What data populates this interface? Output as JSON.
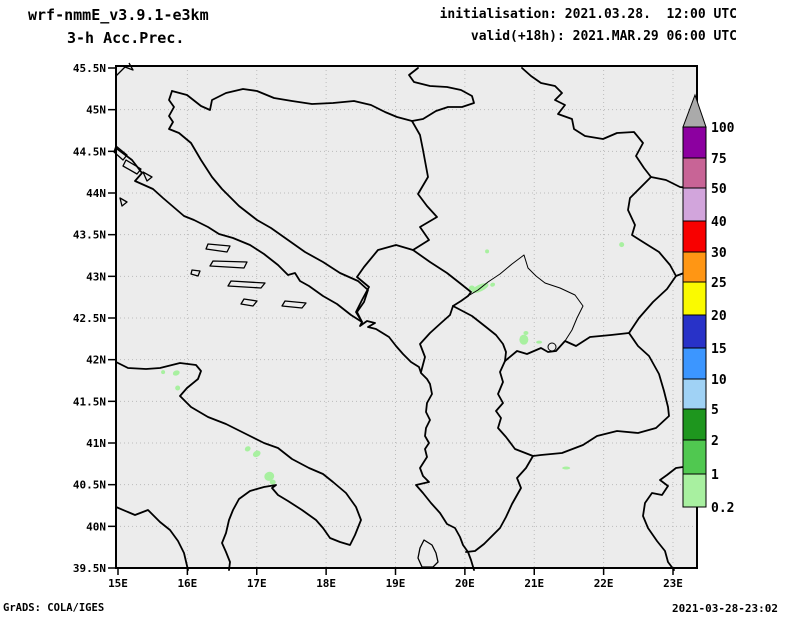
{
  "header": {
    "model_line": "wrf-nmmE_v3.9.1-e3km",
    "variable_line": "3-h Acc.Prec.",
    "init_line": "initialisation: 2021.03.28.  12:00 UTC",
    "valid_line": "valid(+18h): 2021.MAR.29 06:00 UTC"
  },
  "footer": {
    "generator": "GrADS: COLA/IGES",
    "created": "2021-03-28-23:02"
  },
  "axes": {
    "lat_labels": [
      "45.5N",
      "45N",
      "44.5N",
      "44N",
      "43.5N",
      "43N",
      "42.5N",
      "42N",
      "41.5N",
      "41N",
      "40.5N",
      "40N",
      "39.5N"
    ],
    "lon_labels": [
      "15E",
      "16E",
      "17E",
      "18E",
      "19E",
      "20E",
      "21E",
      "22E",
      "23E"
    ]
  },
  "colorbar": {
    "labels": [
      "0.2",
      "1",
      "2",
      "5",
      "10",
      "15",
      "20",
      "25",
      "30",
      "40",
      "50",
      "75",
      "100"
    ],
    "segments": [
      {
        "range": "0.2-1",
        "color": "#a8f0a0"
      },
      {
        "range": "1-2",
        "color": "#50c850"
      },
      {
        "range": "2-5",
        "color": "#1e961e"
      },
      {
        "range": "5-10",
        "color": "#a0d2f5"
      },
      {
        "range": "10-15",
        "color": "#3c96ff"
      },
      {
        "range": "15-20",
        "color": "#2832c8"
      },
      {
        "range": "20-25",
        "color": "#fafa00"
      },
      {
        "range": "25-30",
        "color": "#ff9614"
      },
      {
        "range": "30-40",
        "color": "#f80000"
      },
      {
        "range": "40-50",
        "color": "#d2a5dc"
      },
      {
        "range": "50-75",
        "color": "#c86496"
      },
      {
        "range": "75-100",
        "color": "#8c00a0"
      }
    ],
    "overflow_color": "#aaaaaa"
  },
  "map": {
    "land_color": "#ececec",
    "grid_color": "#bbbbbb",
    "outline_color": "#000000",
    "precip_color": "#a8f0a0",
    "precip_spots": [
      {
        "lon": 15.65,
        "lat": 41.85,
        "w": 4,
        "h": 4,
        "rot": 0
      },
      {
        "lon": 15.84,
        "lat": 41.84,
        "w": 7,
        "h": 5,
        "rot": -20
      },
      {
        "lon": 15.86,
        "lat": 41.66,
        "w": 5,
        "h": 5,
        "rot": 0
      },
      {
        "lon": 16.87,
        "lat": 40.93,
        "w": 6,
        "h": 5,
        "rot": -30
      },
      {
        "lon": 17.0,
        "lat": 40.87,
        "w": 8,
        "h": 6,
        "rot": -30
      },
      {
        "lon": 17.18,
        "lat": 40.6,
        "w": 10,
        "h": 9,
        "rot": -20
      },
      {
        "lon": 17.23,
        "lat": 40.53,
        "w": 6,
        "h": 5,
        "rot": 0
      },
      {
        "lon": 20.32,
        "lat": 43.3,
        "w": 4,
        "h": 4,
        "rot": 0
      },
      {
        "lon": 20.22,
        "lat": 42.86,
        "w": 18,
        "h": 7,
        "rot": -25
      },
      {
        "lon": 20.1,
        "lat": 42.86,
        "w": 6,
        "h": 5,
        "rot": 0
      },
      {
        "lon": 20.4,
        "lat": 42.9,
        "w": 5,
        "h": 4,
        "rot": -20
      },
      {
        "lon": 20.85,
        "lat": 42.24,
        "w": 9,
        "h": 10,
        "rot": 0
      },
      {
        "lon": 20.88,
        "lat": 42.32,
        "w": 5,
        "h": 4,
        "rot": 0
      },
      {
        "lon": 21.07,
        "lat": 42.21,
        "w": 6,
        "h": 3,
        "rot": 0
      },
      {
        "lon": 21.46,
        "lat": 40.7,
        "w": 8,
        "h": 3,
        "rot": 0
      },
      {
        "lon": 22.26,
        "lat": 43.38,
        "w": 5,
        "h": 5,
        "rot": 0
      }
    ]
  }
}
